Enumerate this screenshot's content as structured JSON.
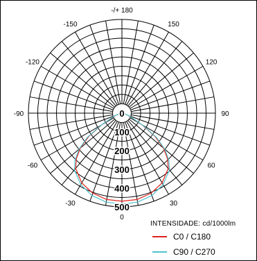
{
  "chart_data": {
    "type": "polar",
    "title": "",
    "radial_axis": {
      "min": 0,
      "max": 500,
      "tick_labels": [
        "0",
        "100",
        "200",
        "300",
        "400",
        "500"
      ]
    },
    "angular_axis": {
      "tick_labels": [
        {
          "angle": 180,
          "label": "-/+ 180"
        },
        {
          "angle": 150,
          "label": "150"
        },
        {
          "angle": 120,
          "label": "120"
        },
        {
          "angle": 90,
          "label": "90"
        },
        {
          "angle": 60,
          "label": "60"
        },
        {
          "angle": 30,
          "label": "30"
        },
        {
          "angle": 0,
          "label": "0"
        },
        {
          "angle": -30,
          "label": "-30"
        },
        {
          "angle": -60,
          "label": "-60"
        },
        {
          "angle": -90,
          "label": "-90"
        },
        {
          "angle": -120,
          "label": "-120"
        },
        {
          "angle": -150,
          "label": "-150"
        }
      ],
      "gridline_step_deg": 10
    },
    "grid": true,
    "unit_label": "INTENSIDADE: cd/1000lm",
    "legend_position": "bottom-right",
    "series": [
      {
        "name": "C0 / C180",
        "color": "#e0221b",
        "angles": [
          0,
          10,
          20,
          30,
          40,
          45,
          50,
          55,
          60,
          70,
          80,
          90
        ],
        "values": [
          470,
          468,
          455,
          430,
          385,
          345,
          290,
          215,
          125,
          35,
          10,
          0
        ]
      },
      {
        "name": "C90 / C270",
        "color": "#4fc3cf",
        "angles": [
          0,
          10,
          20,
          30,
          40,
          45,
          50,
          55,
          60,
          70,
          80,
          90
        ],
        "values": [
          485,
          482,
          468,
          440,
          395,
          355,
          300,
          225,
          130,
          40,
          10,
          0
        ]
      }
    ]
  }
}
